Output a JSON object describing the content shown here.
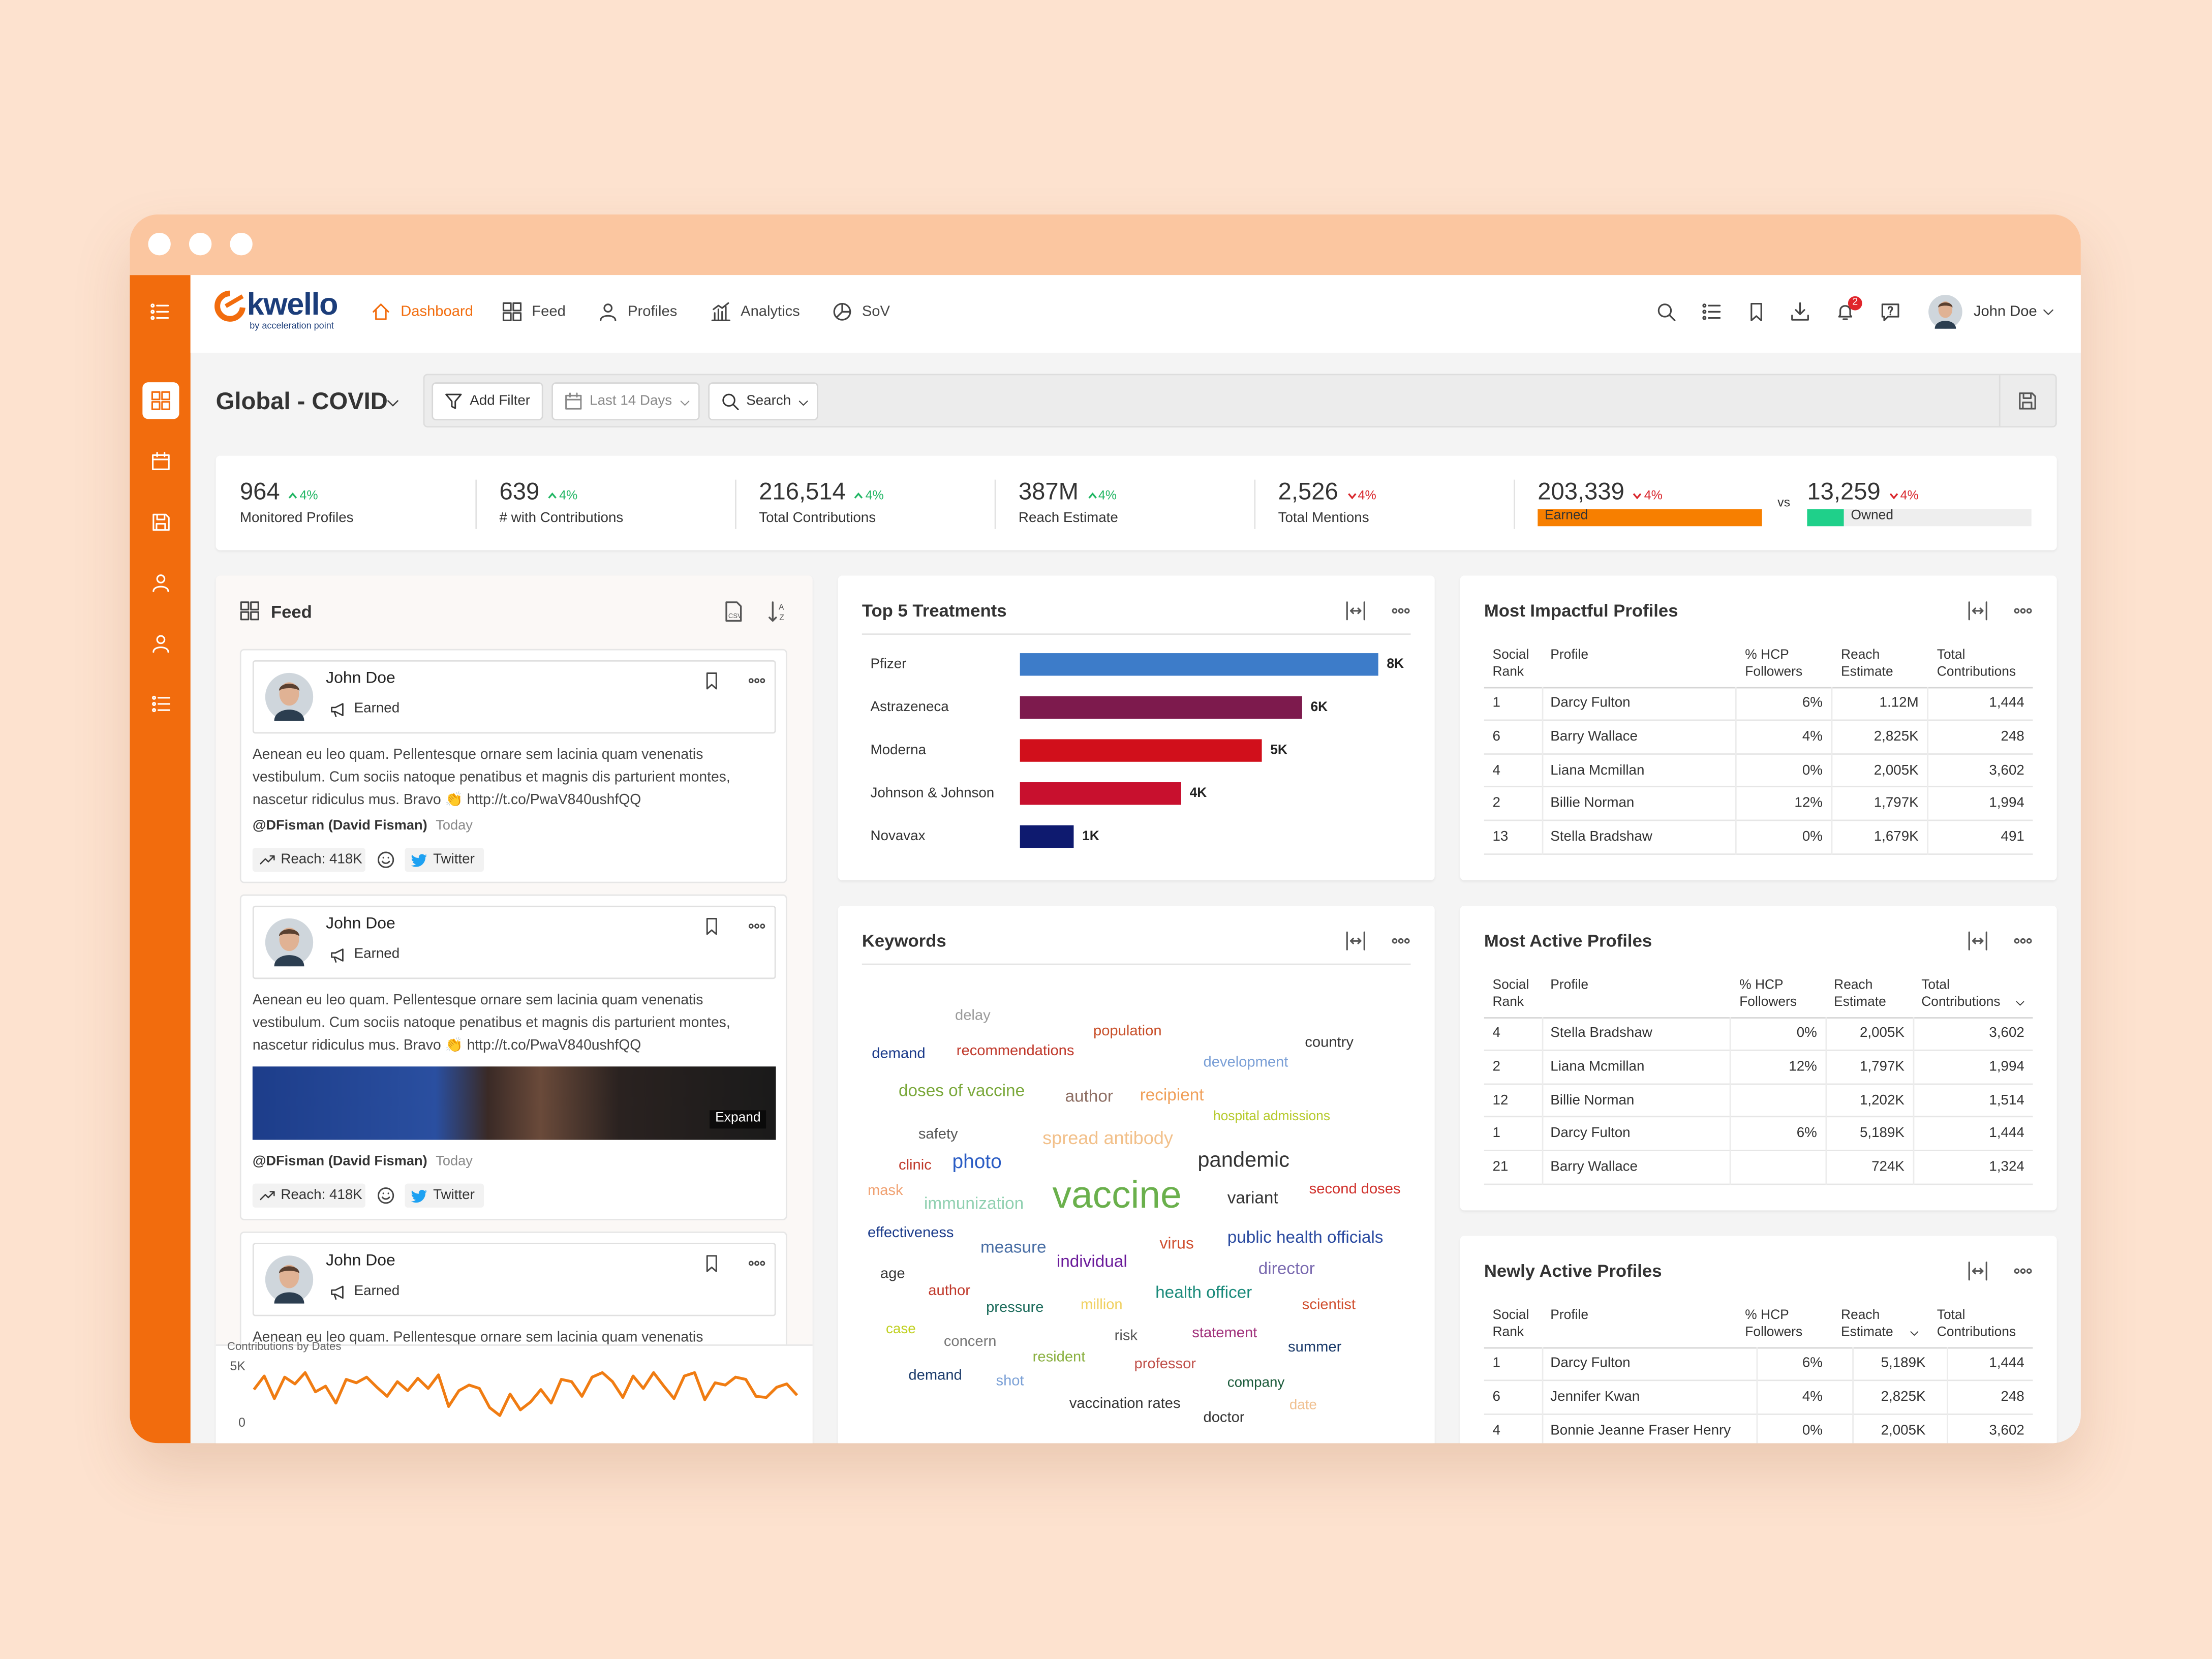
{
  "nav": {
    "logo": "kwello",
    "logo_sub": "by acceleration point",
    "items": [
      "Dashboard",
      "Feed",
      "Profiles",
      "Analytics",
      "SoV"
    ],
    "active_item": 0,
    "notifications": 2,
    "user": "John Doe"
  },
  "toolbar": {
    "title": "Global - COVID",
    "filters": [
      "Add Filter",
      "Last 14 Days",
      "Search"
    ]
  },
  "kpis": [
    {
      "value": "964",
      "change": "4%",
      "trend": "up",
      "label": "Monitored Profiles"
    },
    {
      "value": "639",
      "change": "4%",
      "trend": "up",
      "label": "# with Contributions"
    },
    {
      "value": "216,514",
      "change": "4%",
      "trend": "up",
      "label": "Total Contributions"
    },
    {
      "value": "387M",
      "change": "4%",
      "trend": "up",
      "label": "Reach Estimate"
    },
    {
      "value": "2,526",
      "change": "4%",
      "trend": "down",
      "label": "Total Mentions"
    }
  ],
  "comparison": {
    "earned": {
      "value": "203,339",
      "change": "4%",
      "trend": "down",
      "label": "Earned"
    },
    "vs": "vs",
    "owned": {
      "value": "13,259",
      "change": "4%",
      "trend": "down",
      "label": "Owned"
    }
  },
  "feed": {
    "title": "Feed",
    "posts": [
      {
        "author": "John Doe",
        "tag": "Earned",
        "text": "Aenean eu leo quam. Pellentesque ornare sem lacinia quam venenatis vestibulum. Cum sociis natoque penatibus et magnis dis parturient montes, nascetur ridiculus mus. Bravo 👏 http://t.co/PwaV840ushfQQ",
        "handle": "@DFisman (David Fisman)",
        "time": "Today",
        "reach": "Reach: 418K",
        "source": "Twitter"
      },
      {
        "author": "John Doe",
        "tag": "Earned",
        "text": "Aenean eu leo quam. Pellentesque ornare sem lacinia quam venenatis vestibulum. Cum sociis natoque penatibus et magnis dis parturient montes, nascetur ridiculus mus. Bravo 👏 http://t.co/PwaV840ushfQQ",
        "expand": "Expand",
        "handle": "@DFisman (David Fisman)",
        "time": "Today",
        "reach": "Reach: 418K",
        "source": "Twitter"
      },
      {
        "author": "John Doe",
        "tag": "Earned",
        "text": "Aenean eu leo quam. Pellentesque ornare sem lacinia quam venenatis vestibulum."
      }
    ]
  },
  "chart_data": [
    {
      "type": "bar",
      "orientation": "horizontal",
      "title": "Top 5 Treatments",
      "categories": [
        "Pfizer",
        "Astrazeneca",
        "Moderna",
        "Johnson & Johnson",
        "Novavax"
      ],
      "values": [
        8000,
        6300,
        5400,
        3600,
        1200
      ],
      "value_labels": [
        "8K",
        "6K",
        "5K",
        "4K",
        "1K"
      ],
      "colors": [
        "#3d7cc9",
        "#7d1a4d",
        "#d10f1b",
        "#c8102e",
        "#0e1a6f"
      ]
    },
    {
      "type": "line",
      "title": "Contributions by Dates",
      "color": "#f07c12",
      "values": [
        3000,
        4200,
        2200,
        4100,
        3500,
        4500,
        2800,
        3300,
        1800,
        3900,
        3600,
        4100,
        3200,
        2400,
        3700,
        2900,
        4000,
        3100,
        4300,
        1500,
        2900,
        3400,
        3100,
        1400,
        700,
        2600,
        1200,
        1900,
        3000,
        1800,
        3900,
        3700,
        2400,
        4100,
        4500,
        3700,
        2300,
        4200,
        3100,
        4500,
        3300,
        2200,
        4200,
        4500,
        2100,
        3600,
        3400,
        4100,
        3900,
        2400,
        2300,
        3200,
        3500,
        2500
      ],
      "ylim": [
        0,
        5000
      ],
      "yticks": [
        0,
        {
          "value": 5000,
          "label": "5K"
        }
      ]
    }
  ],
  "keywords": {
    "title": "Keywords",
    "words": [
      {
        "text": "delay",
        "color": "#9a9a9a"
      },
      {
        "text": "population",
        "color": "#c8502a"
      },
      {
        "text": "recommendations",
        "color": "#c0392b"
      },
      {
        "text": "demand",
        "color": "#1a3a8a"
      },
      {
        "text": "country",
        "color": "#333333"
      },
      {
        "text": "development",
        "color": "#7a9fd6"
      },
      {
        "text": "doses of vaccine",
        "color": "#7aa83a"
      },
      {
        "text": "author",
        "color": "#8d6e63"
      },
      {
        "text": "recipient",
        "color": "#f0a05a"
      },
      {
        "text": "hospital admissions",
        "color": "#b5c92a"
      },
      {
        "text": "safety",
        "color": "#555555"
      },
      {
        "text": "spread antibody",
        "color": "#f2c08a"
      },
      {
        "text": "clinic",
        "color": "#c0392b"
      },
      {
        "text": "photo",
        "color": "#2a5cc4"
      },
      {
        "text": "pandemic",
        "color": "#333333"
      },
      {
        "text": "mask",
        "color": "#f0a070"
      },
      {
        "text": "immunization",
        "color": "#8fd0b0"
      },
      {
        "text": "vaccine",
        "color": "#6ab04c"
      },
      {
        "text": "variant",
        "color": "#333333"
      },
      {
        "text": "second doses",
        "color": "#d0302b"
      },
      {
        "text": "effectiveness",
        "color": "#1a3a8a"
      },
      {
        "text": "measure",
        "color": "#4a6fa5"
      },
      {
        "text": "virus",
        "color": "#d05030"
      },
      {
        "text": "public health officials",
        "color": "#2a4aa0"
      },
      {
        "text": "individual",
        "color": "#6a1a9a"
      },
      {
        "text": "director",
        "color": "#7a6ab0"
      },
      {
        "text": "age",
        "color": "#333333"
      },
      {
        "text": "author",
        "color": "#c0392b"
      },
      {
        "text": "pressure",
        "color": "#1a6a5a"
      },
      {
        "text": "million",
        "color": "#f0d060"
      },
      {
        "text": "health officer",
        "color": "#1a8a7a"
      },
      {
        "text": "scientist",
        "color": "#d05030"
      },
      {
        "text": "case",
        "color": "#c0d020"
      },
      {
        "text": "concern",
        "color": "#777777"
      },
      {
        "text": "risk",
        "color": "#555555"
      },
      {
        "text": "statement",
        "color": "#a0307a"
      },
      {
        "text": "summer",
        "color": "#1a3a6a"
      },
      {
        "text": "resident",
        "color": "#8ab040"
      },
      {
        "text": "professor",
        "color": "#c0504a"
      },
      {
        "text": "demand",
        "color": "#1a3a6a"
      },
      {
        "text": "shot",
        "color": "#7aa0d6"
      },
      {
        "text": "company",
        "color": "#1a5a3a"
      },
      {
        "text": "vaccination rates",
        "color": "#333333"
      },
      {
        "text": "date",
        "color": "#f0c090"
      },
      {
        "text": "doctor",
        "color": "#333333"
      }
    ]
  },
  "tables": [
    {
      "title": "Most Impactful Profiles",
      "columns": [
        "Social Rank",
        "Profile",
        "% HCP Followers",
        "Reach Estimate",
        "Total Contributions"
      ],
      "rows": [
        [
          "1",
          "Darcy Fulton",
          "6%",
          "1.12M",
          "1,444"
        ],
        [
          "6",
          "Barry Wallace",
          "4%",
          "2,825K",
          "248"
        ],
        [
          "4",
          "Liana Mcmillan",
          "0%",
          "2,005K",
          "3,602"
        ],
        [
          "2",
          "Billie Norman",
          "12%",
          "1,797K",
          "1,994"
        ],
        [
          "13",
          "Stella Bradshaw",
          "0%",
          "1,679K",
          "491"
        ]
      ]
    },
    {
      "title": "Most Active Profiles",
      "sort_column": 4,
      "columns": [
        "Social Rank",
        "Profile",
        "% HCP Followers",
        "Reach Estimate",
        "Total Contributions"
      ],
      "rows": [
        [
          "4",
          "Stella Bradshaw",
          "0%",
          "2,005K",
          "3,602"
        ],
        [
          "2",
          "Liana Mcmillan",
          "12%",
          "1,797K",
          "1,994"
        ],
        [
          "12",
          "Billie Norman",
          null,
          "1,202K",
          "1,514"
        ],
        [
          "1",
          "Darcy Fulton",
          "6%",
          "5,189K",
          "1,444"
        ],
        [
          "21",
          "Barry Wallace",
          null,
          "724K",
          "1,324"
        ]
      ]
    },
    {
      "title": "Newly Active Profiles",
      "sort_column": 3,
      "columns": [
        "Social Rank",
        "Profile",
        "% HCP Followers",
        "Reach Estimate",
        "Total Contributions"
      ],
      "rows": [
        [
          "1",
          "Darcy Fulton",
          "6%",
          "5,189K",
          "1,444"
        ],
        [
          "6",
          "Jennifer Kwan",
          "4%",
          "2,825K",
          "248"
        ],
        [
          "4",
          "Bonnie Jeanne Fraser Henry",
          "0%",
          "2,005K",
          "3,602"
        ]
      ]
    }
  ]
}
